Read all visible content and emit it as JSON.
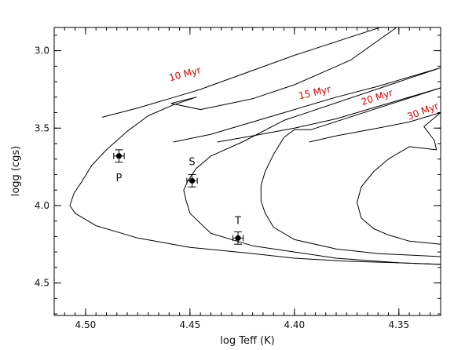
{
  "chart_data": {
    "type": "line",
    "title": "",
    "xlabel": "log Teff (K)",
    "ylabel": "logg (cgs)",
    "xlim": [
      4.515,
      4.33
    ],
    "ylim": [
      4.71,
      2.85
    ],
    "x_reversed": true,
    "y_reversed": true,
    "xticks": [
      4.5,
      4.45,
      4.4,
      4.35
    ],
    "xtick_labels": [
      "4.50",
      "4.45",
      "4.40",
      "4.35"
    ],
    "yticks": [
      3.0,
      3.5,
      4.0,
      4.5
    ],
    "ytick_labels": [
      "3.0",
      "3.5",
      "4.0",
      "4.5"
    ],
    "label_color": "#e00000",
    "series": [
      {
        "name": "10 Myr",
        "x": [
          4.492,
          4.475,
          4.46,
          4.445,
          4.4,
          4.35,
          4.33,
          4.348,
          4.373,
          4.4,
          4.42,
          4.445,
          4.459,
          4.447,
          4.458,
          4.47,
          4.48,
          4.49,
          4.497,
          4.502,
          4.5055,
          4.5075,
          4.505,
          4.495,
          4.475,
          4.45,
          4.42,
          4.4,
          4.375,
          4.35,
          4.33
        ],
        "y": [
          3.43,
          3.37,
          3.31,
          3.25,
          3.03,
          2.81,
          2.72,
          2.82,
          3.06,
          3.22,
          3.31,
          3.38,
          3.34,
          3.3,
          3.35,
          3.42,
          3.52,
          3.64,
          3.74,
          3.85,
          3.92,
          4.0,
          4.05,
          4.13,
          4.21,
          4.27,
          4.31,
          4.34,
          4.36,
          4.37,
          4.38
        ]
      },
      {
        "name": "15 Myr",
        "x": [
          4.458,
          4.44,
          4.42,
          4.4,
          4.38,
          4.36,
          4.33,
          4.405,
          4.425,
          4.44,
          4.447,
          4.451,
          4.453,
          4.452,
          4.45,
          4.44,
          4.42,
          4.4,
          4.38,
          4.35,
          4.33
        ],
        "y": [
          3.59,
          3.54,
          3.46,
          3.38,
          3.3,
          3.23,
          3.11,
          3.45,
          3.59,
          3.68,
          3.76,
          3.84,
          3.9,
          3.96,
          4.05,
          4.18,
          4.26,
          4.3,
          4.34,
          4.37,
          4.38
        ]
      },
      {
        "name": "20 Myr",
        "x": [
          4.437,
          4.42,
          4.4,
          4.38,
          4.36,
          4.33,
          4.392,
          4.4,
          4.405,
          4.41,
          4.414,
          4.416,
          4.416,
          4.414,
          4.41,
          4.4,
          4.38,
          4.36,
          4.33
        ],
        "y": [
          3.59,
          3.55,
          3.5,
          3.44,
          3.36,
          3.24,
          3.51,
          3.51,
          3.56,
          3.67,
          3.78,
          3.87,
          3.97,
          4.05,
          4.14,
          4.22,
          4.28,
          4.31,
          4.33
        ]
      },
      {
        "name": "30 Myr",
        "x": [
          4.393,
          4.38,
          4.36,
          4.345,
          4.33,
          4.338,
          4.333,
          4.332,
          4.345,
          4.355,
          4.362,
          4.368,
          4.37,
          4.368,
          4.362,
          4.355,
          4.345,
          4.33
        ],
        "y": [
          3.59,
          3.55,
          3.5,
          3.46,
          3.4,
          3.49,
          3.58,
          3.64,
          3.62,
          3.7,
          3.78,
          3.88,
          3.98,
          4.08,
          4.15,
          4.19,
          4.23,
          4.25
        ]
      }
    ],
    "series_labels": [
      {
        "text": "10 Myr",
        "x": 4.452,
        "y": 3.17,
        "angle": -15
      },
      {
        "text": "15 Myr",
        "x": 4.39,
        "y": 3.29,
        "angle": -13
      },
      {
        "text": "20 Myr",
        "x": 4.36,
        "y": 3.32,
        "angle": -18
      },
      {
        "text": "30 Myr",
        "x": 4.338,
        "y": 3.41,
        "angle": -21
      }
    ],
    "points": [
      {
        "label": "P",
        "x": 4.484,
        "y": 3.68,
        "yerr": 0.04,
        "xerr": 0.0025
      },
      {
        "label": "S",
        "x": 4.449,
        "y": 3.84,
        "yerr": 0.04,
        "xerr": 0.0025
      },
      {
        "label": "T",
        "x": 4.427,
        "y": 4.21,
        "yerr": 0.04,
        "xerr": 0.0025
      }
    ]
  }
}
